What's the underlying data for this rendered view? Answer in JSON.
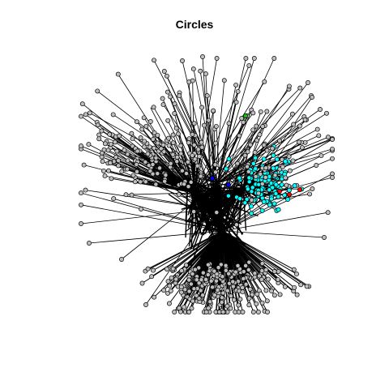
{
  "title": "Circles",
  "colors": {
    "background": "#ffffff",
    "edge": "#000000",
    "node_default": "#bebebe",
    "node_highlight_cyan": "#00ffff",
    "node_highlight_red": "#ff0000",
    "node_highlight_blue": "#0000ff",
    "node_highlight_green": "#00cc00",
    "node_stroke": "#000000"
  }
}
